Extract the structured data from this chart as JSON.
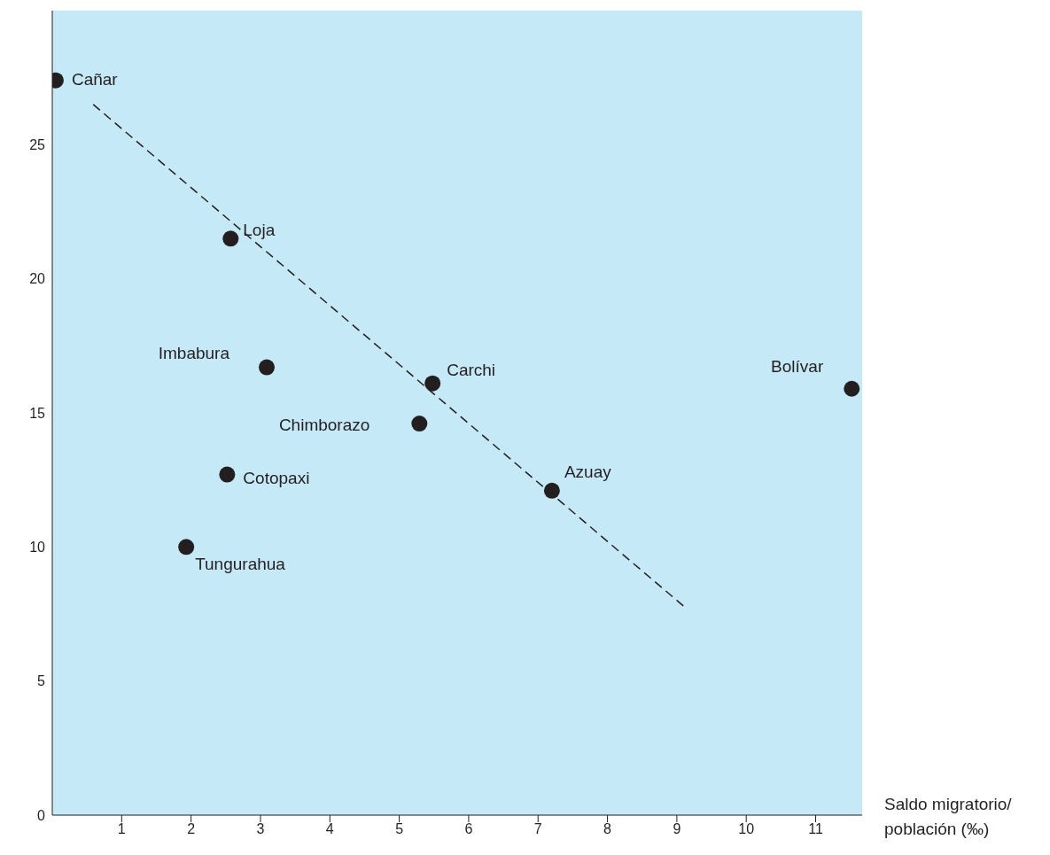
{
  "chart_data": {
    "type": "scatter",
    "xlabel": "Saldo migratorio/ población (‰)",
    "series": [
      {
        "color": "#231f20",
        "x": [
          0.05,
          2.57,
          3.09,
          5.48,
          5.29,
          2.52,
          1.93,
          7.2,
          11.52
        ],
        "values": [
          27.4,
          21.5,
          16.7,
          16.1,
          14.6,
          12.7,
          10.0,
          12.1,
          15.9
        ]
      },
      {
        "type": "line",
        "color": "#231f20",
        "line_style": "dashed",
        "marker": "none",
        "x": [
          0.59,
          9.14
        ],
        "values": [
          26.5,
          7.7
        ]
      }
    ],
    "annotations": [
      {
        "text": "Cañar",
        "x": 0.05,
        "y": 27.4
      },
      {
        "text": "Loja",
        "x": 2.57,
        "y": 21.5
      },
      {
        "text": "Imbabura",
        "x": 3.09,
        "y": 16.7
      },
      {
        "text": "Carchi",
        "x": 5.48,
        "y": 16.1
      },
      {
        "text": "Chimborazo",
        "x": 5.29,
        "y": 14.6
      },
      {
        "text": "Cotopaxi",
        "x": 2.52,
        "y": 12.7
      },
      {
        "text": "Tungurahua",
        "x": 1.93,
        "y": 10.0
      },
      {
        "text": "Azuay",
        "x": 7.2,
        "y": 12.1
      },
      {
        "text": "Bolívar",
        "x": 11.52,
        "y": 15.9
      }
    ],
    "xlim": [
      0,
      11.67
    ],
    "xticks": [
      1,
      2,
      3,
      4,
      5,
      6,
      7,
      8,
      9,
      10,
      11
    ],
    "ylim": [
      0,
      30
    ],
    "yticks": [
      0,
      5,
      10,
      15,
      20,
      25
    ],
    "grid": false,
    "marker": "circle"
  }
}
